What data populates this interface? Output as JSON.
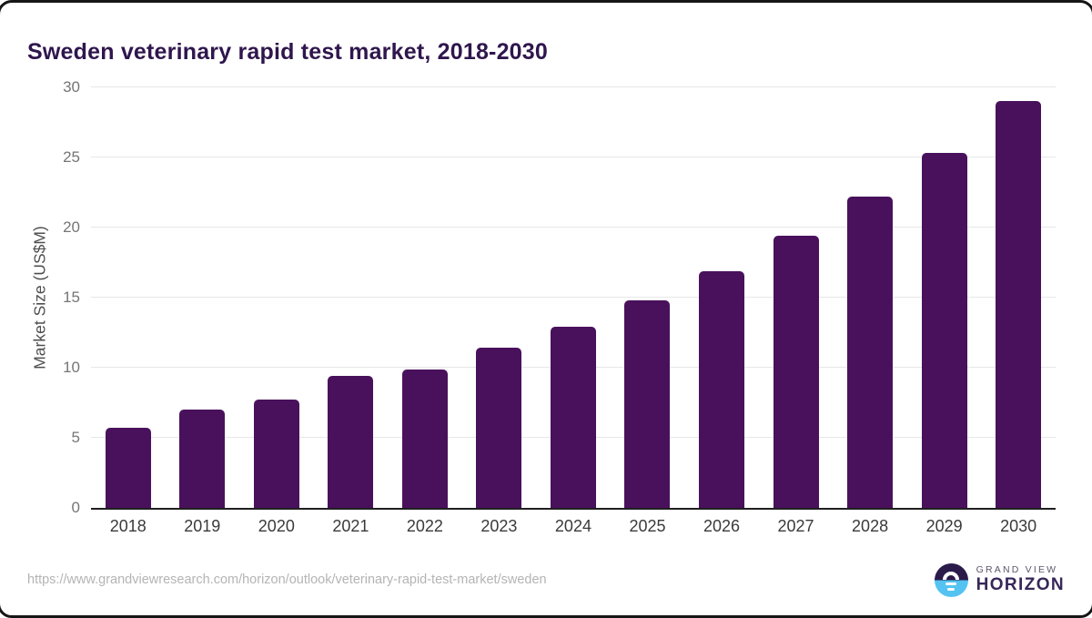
{
  "page": {
    "title": "Sweden veterinary rapid test market, 2018-2030"
  },
  "chart_data": {
    "type": "bar",
    "title": "Sweden veterinary rapid test market, 2018-2030",
    "xlabel": "",
    "ylabel": "Market Size (US$M)",
    "categories": [
      "2018",
      "2019",
      "2020",
      "2021",
      "2022",
      "2023",
      "2024",
      "2025",
      "2026",
      "2027",
      "2028",
      "2029",
      "2030"
    ],
    "values": [
      5.7,
      7.0,
      7.7,
      9.4,
      9.9,
      11.4,
      12.9,
      14.8,
      16.9,
      19.4,
      22.2,
      25.3,
      29.0
    ],
    "ylim": [
      0,
      30
    ],
    "yticks": [
      0,
      5,
      10,
      15,
      20,
      25,
      30
    ],
    "grid": true,
    "legend_position": "none",
    "bar_color": "#49115C"
  },
  "footer": {
    "source_url": "https://www.grandviewresearch.com/horizon/outlook/veterinary-rapid-test-market/sweden",
    "logo": {
      "icon": "grand-view-horizon-logo",
      "line1": "GRAND VIEW",
      "line2": "HORIZON"
    }
  },
  "colors": {
    "bar": "#49115C",
    "title_text": "#2F164D",
    "axis_line": "#1F1F1F",
    "gridline": "#E7E7E7",
    "tick_text": "#757575",
    "x_label_text": "#3A3A3A",
    "url_text": "#B4B4B4",
    "logo_blue": "#54C3F1",
    "logo_dark_purple": "#2B1B4A"
  }
}
